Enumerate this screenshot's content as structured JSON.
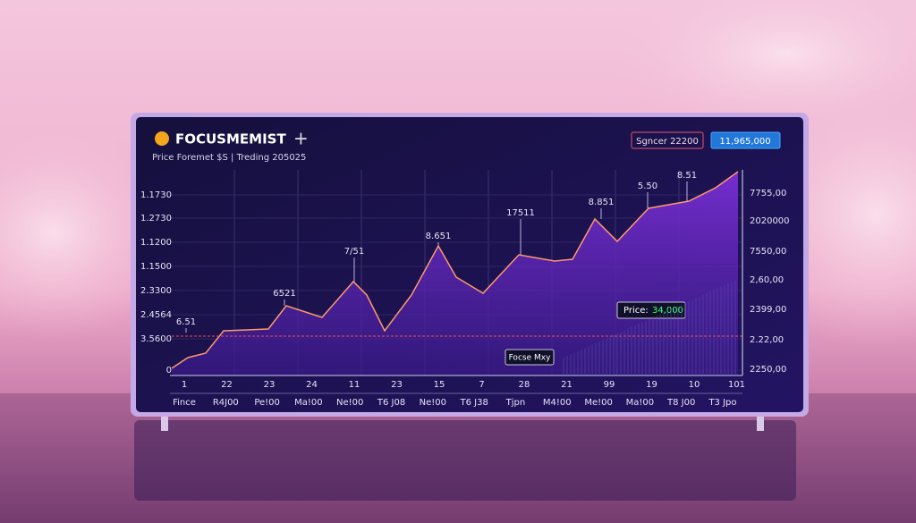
{
  "header": {
    "brand": "FOCUSMEMIST",
    "subtitle": "Price Foremet $S | Treding 205025",
    "badges": [
      "Sgncer 22200",
      "11,965,000"
    ]
  },
  "chart": {
    "left_axis": [
      "1.1730",
      "1.2730",
      "1.1200",
      "1.1500",
      "2.3300",
      "2.4564",
      "3.5600",
      "0"
    ],
    "right_axis": [
      "7755,00",
      "2020000",
      "7550,00",
      "2,60,00",
      "2399,00",
      "2.22,00",
      "2250,00"
    ],
    "x_row1": [
      "1",
      "22",
      "23",
      "24",
      "11",
      "23",
      "15",
      "7",
      "28",
      "21",
      "99",
      "19",
      "10",
      "101"
    ],
    "x_row2": [
      "Fince",
      "R4J00",
      "Pe!00",
      "Ma!00",
      "Ne!00",
      "T6 J08",
      "Ne!00",
      "T6 J38",
      "Tjpn",
      "M4!00",
      "Me!00",
      "Ma!00",
      "T8 J00",
      "T3 Jpo"
    ],
    "annotations": [
      "6.51",
      "6521",
      "7/51",
      "8.651",
      "17511",
      "8.851",
      "5.50",
      "8.51"
    ],
    "price_label": {
      "label": "Price:",
      "value": "34,000"
    },
    "tooltip": "Focse Mxy"
  }
}
